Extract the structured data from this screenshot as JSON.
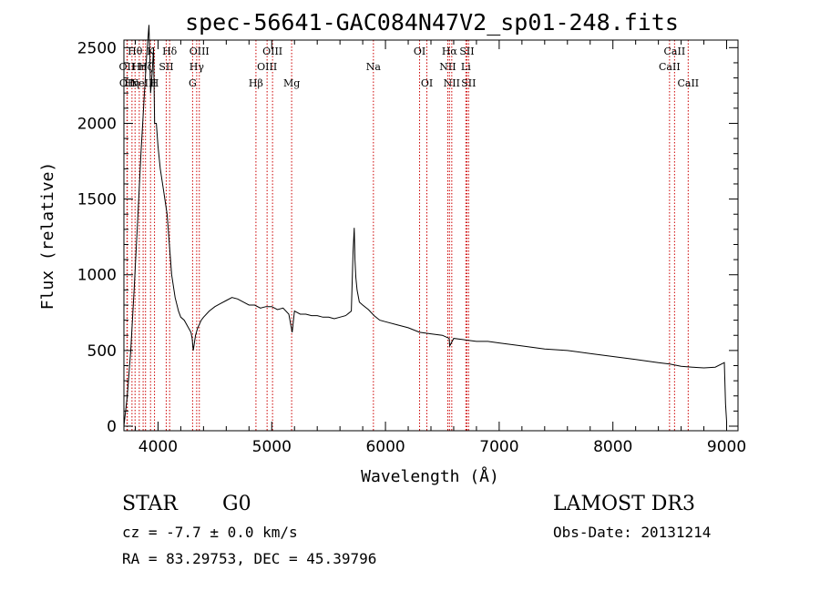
{
  "chart_data": {
    "type": "line",
    "title": "spec-56641-GAC084N47V2_sp01-248.fits",
    "xlabel": "Wavelength (Å)",
    "ylabel": "Flux (relative)",
    "xlim": [
      3700,
      9100
    ],
    "ylim": [
      -30,
      2550
    ],
    "xticks": [
      4000,
      5000,
      6000,
      7000,
      8000,
      9000
    ],
    "xtick_labels": [
      "4000",
      "5000",
      "6000",
      "7000",
      "8000",
      "9000"
    ],
    "yticks": [
      0,
      500,
      1000,
      1500,
      2000,
      2500
    ],
    "ytick_labels": [
      "0",
      "500",
      "1000",
      "1500",
      "2000",
      "2500"
    ],
    "series": [
      {
        "name": "flux",
        "x": [
          3700,
          3730,
          3760,
          3790,
          3820,
          3850,
          3880,
          3900,
          3920,
          3935,
          3950,
          3960,
          3970,
          3985,
          4000,
          4020,
          4050,
          4080,
          4100,
          4120,
          4150,
          4180,
          4200,
          4230,
          4260,
          4290,
          4300,
          4310,
          4330,
          4350,
          4380,
          4400,
          4450,
          4500,
          4550,
          4600,
          4650,
          4700,
          4750,
          4800,
          4850,
          4900,
          4950,
          5000,
          5050,
          5100,
          5150,
          5180,
          5200,
          5250,
          5300,
          5350,
          5400,
          5450,
          5500,
          5550,
          5600,
          5650,
          5700,
          5715,
          5725,
          5732,
          5740,
          5750,
          5770,
          5800,
          5850,
          5900,
          5950,
          6000,
          6100,
          6200,
          6300,
          6400,
          6500,
          6560,
          6565,
          6600,
          6700,
          6800,
          6900,
          7000,
          7200,
          7400,
          7600,
          7800,
          8000,
          8200,
          8400,
          8500,
          8600,
          8700,
          8800,
          8900,
          8980,
          8990,
          9000
        ],
        "values": [
          0,
          200,
          500,
          900,
          1350,
          1800,
          2200,
          2450,
          2650,
          2200,
          2350,
          2500,
          2000,
          2000,
          1850,
          1700,
          1550,
          1400,
          1200,
          1000,
          850,
          760,
          720,
          700,
          660,
          620,
          580,
          500,
          600,
          650,
          700,
          720,
          760,
          790,
          810,
          830,
          850,
          840,
          820,
          800,
          800,
          780,
          790,
          790,
          770,
          780,
          740,
          620,
          760,
          740,
          740,
          730,
          730,
          720,
          720,
          710,
          720,
          730,
          760,
          1150,
          1310,
          1100,
          980,
          900,
          820,
          800,
          770,
          730,
          700,
          690,
          670,
          650,
          620,
          610,
          600,
          580,
          530,
          580,
          570,
          560,
          560,
          550,
          530,
          510,
          500,
          480,
          460,
          440,
          420,
          410,
          395,
          390,
          385,
          390,
          420,
          150,
          30
        ]
      }
    ],
    "spectral_lines": [
      {
        "x": 3727,
        "label": "OII",
        "row": 2
      },
      {
        "x": 3730,
        "label": "OII",
        "row": 3
      },
      {
        "x": 3771,
        "label": "Hη",
        "row": 3
      },
      {
        "x": 3798,
        "label": "Hθ",
        "row": 1
      },
      {
        "x": 3835,
        "label": "Hη",
        "row": 2
      },
      {
        "x": 3869,
        "label": "NeIII",
        "row": 3
      },
      {
        "x": 3890,
        "label": "Hζ",
        "row": 2
      },
      {
        "x": 3934,
        "label": "K",
        "row": 1
      },
      {
        "x": 3969,
        "label": "H",
        "row": 3
      },
      {
        "x": 4072,
        "label": "SII",
        "row": 2
      },
      {
        "x": 4102,
        "label": "Hδ",
        "row": 1
      },
      {
        "x": 4304,
        "label": "G",
        "row": 3
      },
      {
        "x": 4340,
        "label": "Hγ",
        "row": 2
      },
      {
        "x": 4363,
        "label": "OIII",
        "row": 1
      },
      {
        "x": 4861,
        "label": "Hβ",
        "row": 3
      },
      {
        "x": 4959,
        "label": "OIII",
        "row": 2
      },
      {
        "x": 5007,
        "label": "OIII",
        "row": 1
      },
      {
        "x": 5175,
        "label": "Mg",
        "row": 3
      },
      {
        "x": 5894,
        "label": "Na",
        "row": 2
      },
      {
        "x": 6300,
        "label": "OI",
        "row": 1
      },
      {
        "x": 6364,
        "label": "OI",
        "row": 3
      },
      {
        "x": 6548,
        "label": "NII",
        "row": 2
      },
      {
        "x": 6563,
        "label": "Hα",
        "row": 1
      },
      {
        "x": 6583,
        "label": "NII",
        "row": 3
      },
      {
        "x": 6707,
        "label": "Li",
        "row": 2
      },
      {
        "x": 6716,
        "label": "SII",
        "row": 1
      },
      {
        "x": 6731,
        "label": "SII",
        "row": 3
      },
      {
        "x": 8498,
        "label": "CaII",
        "row": 2
      },
      {
        "x": 8542,
        "label": "CaII",
        "row": 1
      },
      {
        "x": 8662,
        "label": "CaII",
        "row": 3
      }
    ],
    "line_color": "#000000",
    "marker_color": "#cc0000"
  },
  "info": {
    "class": "STAR",
    "subclass": "G0",
    "survey": "LAMOST DR3",
    "cz": "cz = -7.7 ± 0.0 km/s",
    "obs_date": "Obs-Date: 20131214",
    "coords": "RA =  83.29753, DEC =  45.39796"
  }
}
